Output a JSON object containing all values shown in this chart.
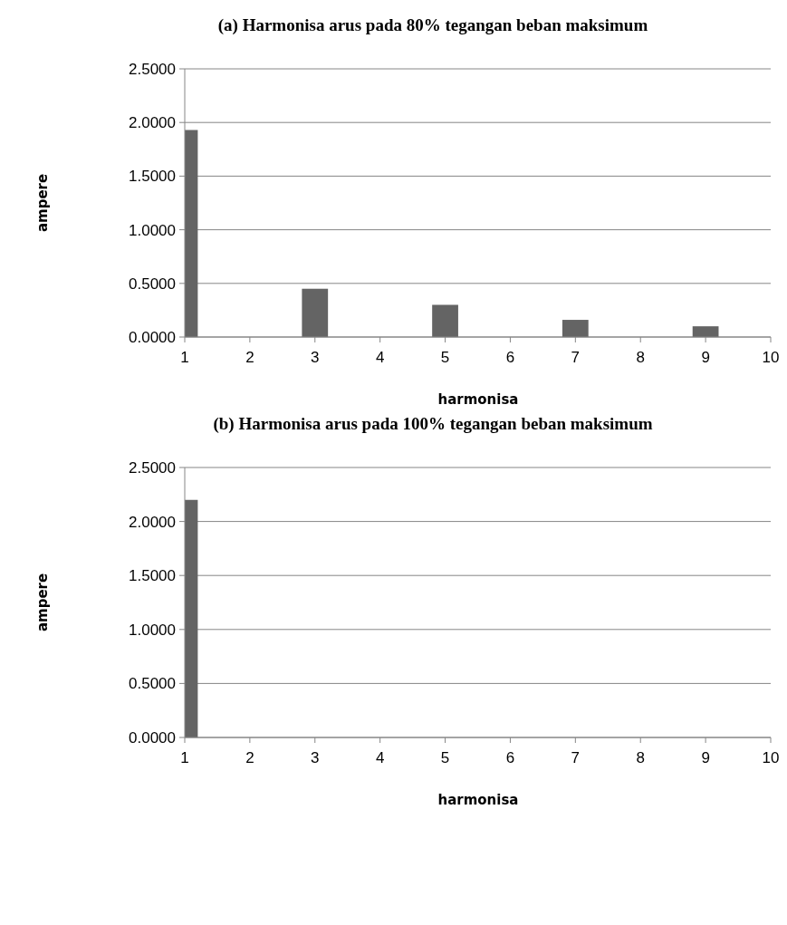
{
  "chart_data": [
    {
      "type": "bar",
      "title": "(a) Harmonisa arus pada 80% tegangan beban maksimum",
      "xlabel": "harmonisa",
      "ylabel": "ampere",
      "x": [
        1,
        3,
        5,
        7,
        9
      ],
      "values": [
        1.93,
        0.45,
        0.3,
        0.16,
        0.1
      ],
      "color": "#646464",
      "xlim": [
        1,
        10
      ],
      "xticks": [
        1,
        2,
        3,
        4,
        5,
        6,
        7,
        8,
        9,
        10
      ],
      "ylim": [
        0,
        2.5
      ],
      "yticks": [
        {
          "value": 0,
          "label": "0.0000"
        },
        {
          "value": 0.5,
          "label": "0.5000"
        },
        {
          "value": 1,
          "label": "1.0000"
        },
        {
          "value": 1.5,
          "label": "1.5000"
        },
        {
          "value": 2,
          "label": "2.0000"
        },
        {
          "value": 2.5,
          "label": "2.5000"
        }
      ],
      "grid": "y"
    },
    {
      "type": "bar",
      "title": "(b) Harmonisa arus pada 100% tegangan beban maksimum",
      "xlabel": "harmonisa",
      "ylabel": "ampere",
      "x": [
        1
      ],
      "values": [
        2.2
      ],
      "color": "#646464",
      "xlim": [
        1,
        10
      ],
      "xticks": [
        1,
        2,
        3,
        4,
        5,
        6,
        7,
        8,
        9,
        10
      ],
      "ylim": [
        0,
        2.5
      ],
      "yticks": [
        {
          "value": 0,
          "label": "0.0000"
        },
        {
          "value": 0.5,
          "label": "0.5000"
        },
        {
          "value": 1,
          "label": "1.0000"
        },
        {
          "value": 1.5,
          "label": "1.5000"
        },
        {
          "value": 2,
          "label": "2.0000"
        },
        {
          "value": 2.5,
          "label": "2.5000"
        }
      ],
      "grid": "y"
    }
  ]
}
